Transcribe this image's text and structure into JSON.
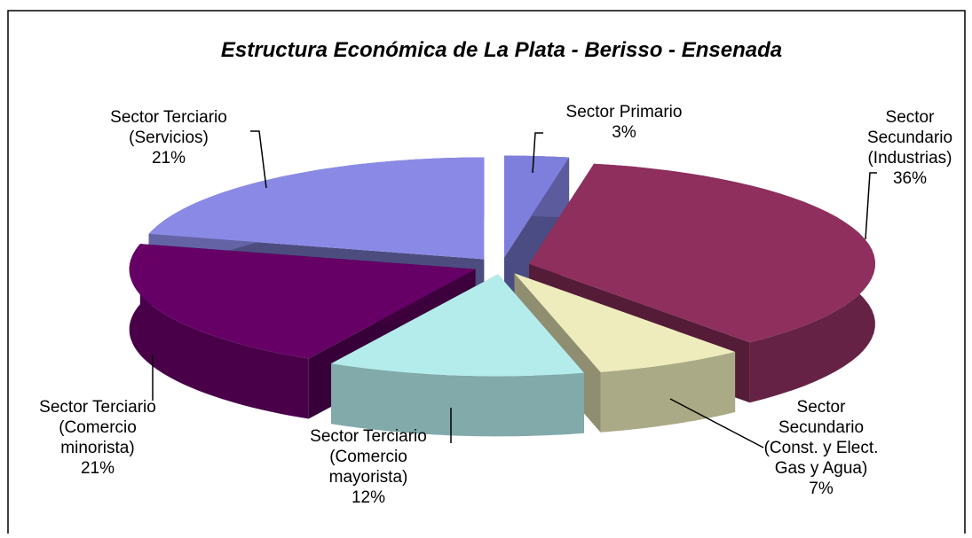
{
  "chart_data": {
    "type": "pie3d",
    "title": "Estructura Económica de La Plata - Berisso - Ensenada",
    "categories": [
      "Sector Primario",
      "Sector Secundario (Industrias)",
      "Sector Secundario (Const. y Elect. Gas y Agua)",
      "Sector Terciario (Comercio mayorista)",
      "Sector Terciario (Comercio minorista)",
      "Sector Terciario (Servicios)"
    ],
    "values": [
      3,
      36,
      7,
      12,
      21,
      21
    ],
    "value_labels": [
      "3%",
      "36%",
      "7%",
      "12%",
      "21%",
      "21%"
    ],
    "colors": [
      "#7e7edc",
      "#8e2f5e",
      "#eeecbc",
      "#b4ecec",
      "#660066",
      "#8a8ae6"
    ]
  }
}
